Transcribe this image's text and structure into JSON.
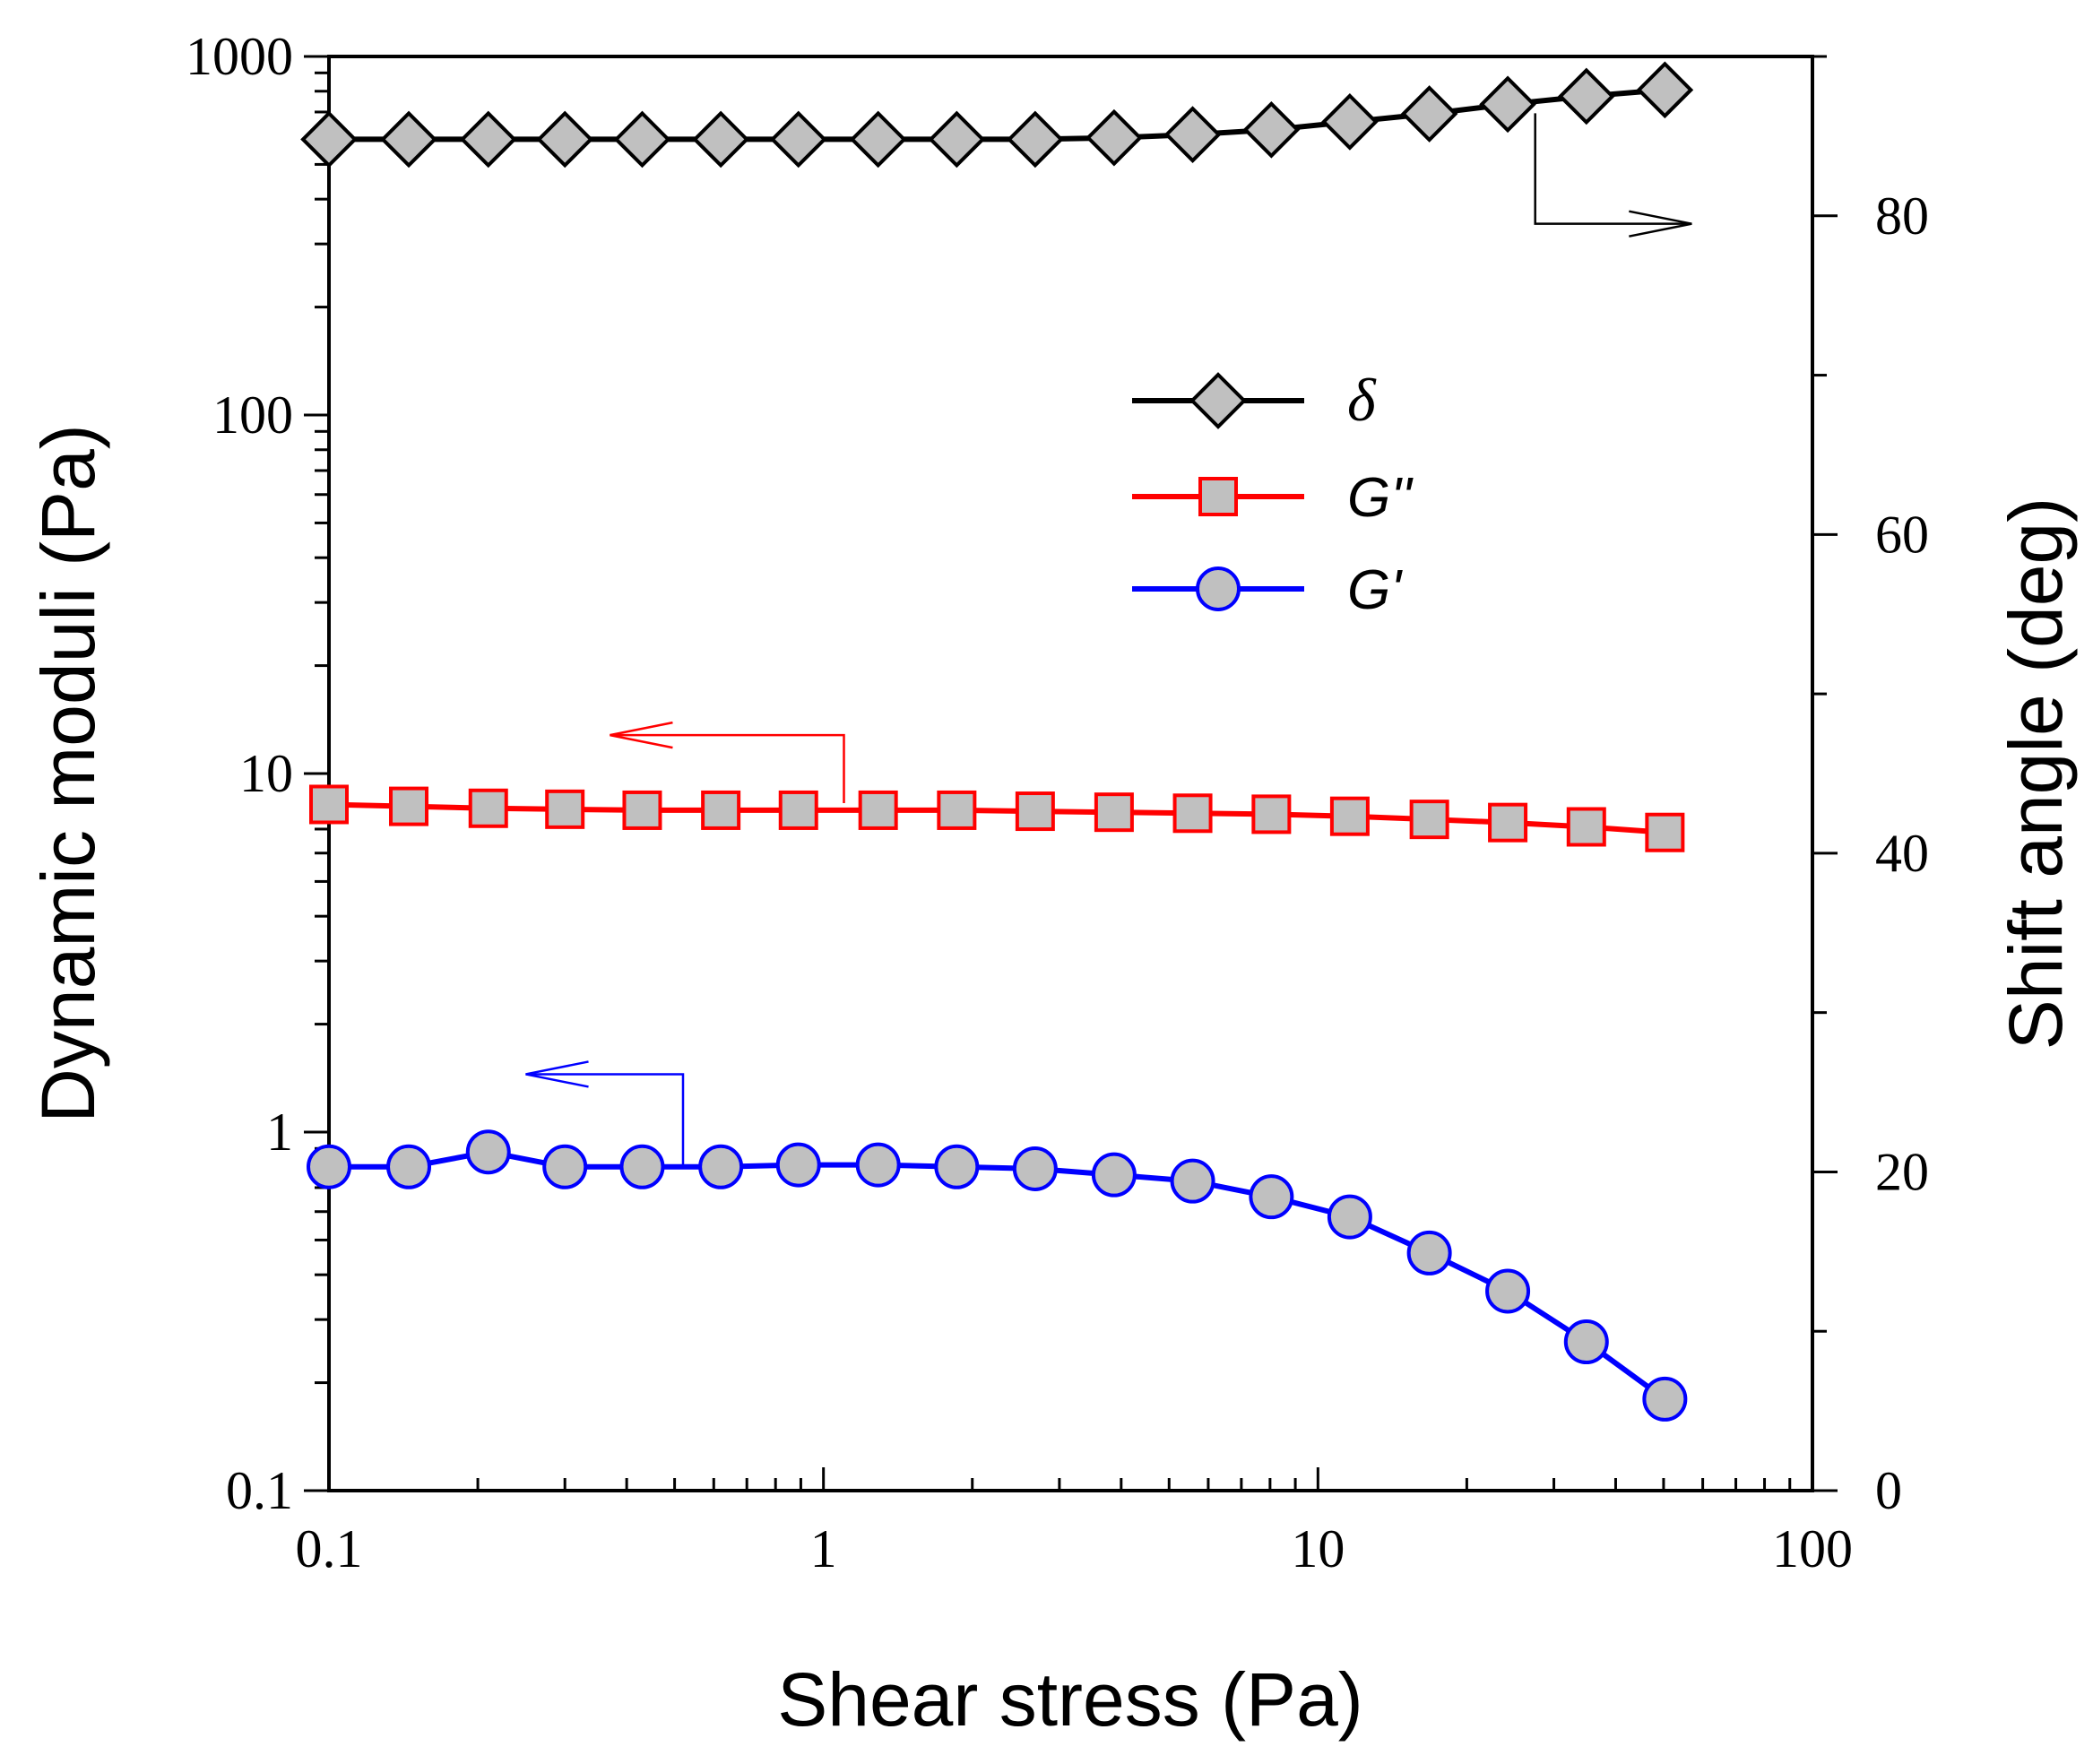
{
  "chart_data": {
    "type": "line",
    "xlabel": "Shear stress (Pa)",
    "ylabel": "Dynamic moduli (Pa)",
    "y2label": "Shift angle (deg)",
    "xscale": "log",
    "yscale": "log",
    "xlim": [
      0.1,
      100
    ],
    "ylim": [
      0.1,
      1000
    ],
    "y2lim": [
      0,
      90
    ],
    "x_ticks": [
      "0.1",
      "1",
      "10",
      "100"
    ],
    "y_ticks": [
      "0.1",
      "1",
      "10",
      "100",
      "1000"
    ],
    "y2_ticks": [
      "0",
      "20",
      "40",
      "60",
      "80"
    ],
    "x": [
      0.1,
      0.145,
      0.21,
      0.3,
      0.43,
      0.62,
      0.89,
      1.29,
      1.86,
      2.68,
      3.87,
      5.58,
      8.05,
      11.6,
      16.8,
      24.2,
      34.9,
      50.3
    ],
    "series": [
      {
        "name": "δ",
        "axis": "right",
        "marker": "diamond",
        "color": "#000000",
        "values": [
          84.8,
          84.8,
          84.8,
          84.8,
          84.8,
          84.8,
          84.8,
          84.8,
          84.8,
          84.8,
          84.9,
          85.1,
          85.4,
          85.9,
          86.4,
          87.0,
          87.5,
          87.9
        ]
      },
      {
        "name": "G''",
        "axis": "left",
        "marker": "square",
        "color": "#ff0000",
        "values": [
          8.2,
          8.1,
          8.0,
          7.95,
          7.9,
          7.9,
          7.9,
          7.9,
          7.9,
          7.85,
          7.8,
          7.75,
          7.7,
          7.6,
          7.45,
          7.3,
          7.1,
          6.85
        ]
      },
      {
        "name": "G'",
        "axis": "left",
        "marker": "circle",
        "color": "#0000ff",
        "values": [
          0.8,
          0.8,
          0.88,
          0.8,
          0.8,
          0.8,
          0.81,
          0.81,
          0.8,
          0.79,
          0.76,
          0.73,
          0.66,
          0.58,
          0.46,
          0.36,
          0.26,
          0.18
        ]
      }
    ],
    "legend": {
      "position": "upper-middle",
      "entries": [
        "δ",
        "G''",
        "G'"
      ]
    },
    "annotations": [
      {
        "label": "arrow to right axis",
        "series": "δ",
        "direction": "right"
      },
      {
        "label": "arrow to left axis",
        "series": "G''",
        "direction": "left"
      },
      {
        "label": "arrow to left axis",
        "series": "G'",
        "direction": "left"
      }
    ],
    "grid": false
  }
}
